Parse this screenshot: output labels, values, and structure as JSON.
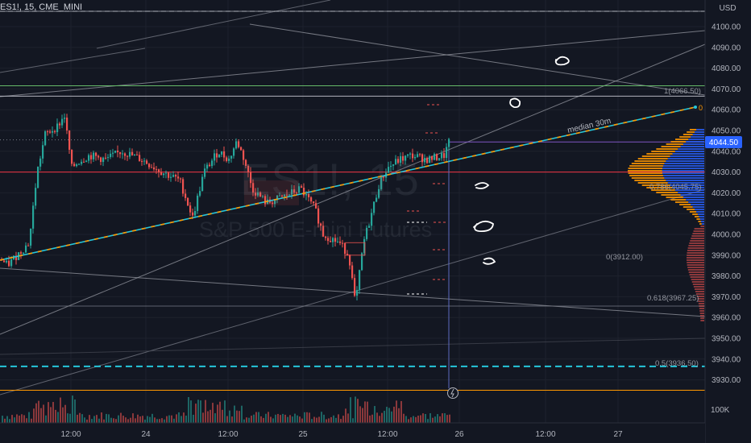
{
  "header": {
    "title": "ES1!, 15, CME_MINI",
    "currency": "USD"
  },
  "watermark": {
    "symbol": "ES1!, 15",
    "description": "S&P 500 E-mini Futures"
  },
  "chart_data": {
    "type": "candlestick",
    "y_axis": {
      "range": [
        3920,
        4107
      ],
      "ticks": [
        "4100.00",
        "4090.00",
        "4080.00",
        "4070.00",
        "4060.00",
        "4050.00",
        "4040.00",
        "4030.00",
        "4020.00",
        "4010.00",
        "4000.00",
        "3990.00",
        "3980.00",
        "3970.00",
        "3960.00",
        "3950.00",
        "3940.00",
        "3930.00"
      ],
      "volume_label": "100K"
    },
    "x_axis": {
      "ticks": [
        "12:00",
        "24",
        "12:00",
        "25",
        "12:00",
        "26",
        "12:00",
        "27"
      ]
    },
    "last_price": "4044.50",
    "annotations": {
      "median": "median 30m",
      "median_end": "0"
    },
    "fib_levels": [
      {
        "label": "1(4066.50)",
        "price": 4066.5
      },
      {
        "label": "0.786(4045.75)",
        "price": 4045.75
      },
      {
        "label": "0(3912.00)",
        "price": 3912.0
      },
      {
        "label": "0.618(3967.25)",
        "price": 3967.25
      },
      {
        "label": "0.5(3936.50)",
        "price": 3936.5
      }
    ],
    "horizontal_lines": [
      {
        "price": 4071.5,
        "color": "#66bb6a"
      },
      {
        "price": 4030.0,
        "color": "#f23645"
      },
      {
        "price": 3925.0,
        "color": "#ff9800"
      }
    ],
    "price_path": [
      [
        0,
        3988
      ],
      [
        8,
        3985
      ],
      [
        20,
        3990
      ],
      [
        35,
        3996
      ],
      [
        45,
        4030
      ],
      [
        55,
        4048
      ],
      [
        70,
        4052
      ],
      [
        79,
        4057
      ],
      [
        88,
        4032
      ],
      [
        96,
        4035
      ],
      [
        110,
        4038
      ],
      [
        130,
        4036
      ],
      [
        150,
        4040
      ],
      [
        175,
        4036
      ],
      [
        200,
        4030
      ],
      [
        222,
        4026
      ],
      [
        238,
        4008
      ],
      [
        252,
        4030
      ],
      [
        270,
        4040
      ],
      [
        283,
        4036
      ],
      [
        293,
        4045
      ],
      [
        302,
        4036
      ],
      [
        312,
        4022
      ],
      [
        330,
        4015
      ],
      [
        350,
        4018
      ],
      [
        372,
        4022
      ],
      [
        390,
        4012
      ],
      [
        400,
        4000
      ],
      [
        420,
        3996
      ],
      [
        432,
        3990
      ],
      [
        440,
        3966
      ],
      [
        450,
        3996
      ],
      [
        460,
        4010
      ],
      [
        470,
        4025
      ],
      [
        480,
        4032
      ],
      [
        495,
        4036
      ],
      [
        510,
        4038
      ],
      [
        530,
        4036
      ],
      [
        550,
        4038
      ],
      [
        557,
        4045
      ]
    ],
    "colors": {
      "up": "#26a69a",
      "down": "#ef5350",
      "last_price_label": "#2962ff",
      "median": "#26c6da",
      "median_dash": "#ff9800",
      "profile_blue": "#2962ff",
      "profile_orange": "#ff9800",
      "profile_red": "#ef5350"
    }
  }
}
